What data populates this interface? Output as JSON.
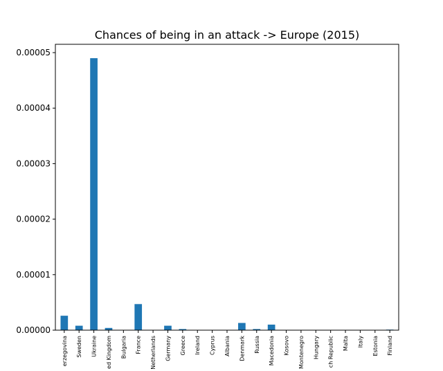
{
  "chart_data": {
    "type": "bar",
    "title": "Chances of being in an attack -> Europe (2015)",
    "xlabel": "",
    "ylabel": "",
    "categories": [
      "erzegovina",
      "Sweden",
      "Ukraine",
      "ed Kingdom",
      "Bulgaria",
      "France",
      "Netherlands",
      "Germany",
      "Greece",
      "Ireland",
      "Cyprus",
      "Albania",
      "Denmark",
      "Russia",
      "Macedonia",
      "Kosovo",
      "Montenegro",
      "Hungary",
      "ch Republic",
      "Malta",
      "Italy",
      "Estonia",
      "Finland"
    ],
    "values": [
      2.6e-06,
      8e-07,
      4.9e-05,
      4e-07,
      0.0,
      4.7e-06,
      0.0,
      8e-07,
      2e-07,
      0.0,
      0.0,
      0.0,
      1.3e-06,
      2e-07,
      1e-06,
      0.0,
      0.0,
      0.0,
      0.0,
      0.0,
      0.0,
      0.0,
      1e-07
    ],
    "ylim": [
      0,
      5.15e-05
    ],
    "yticks": [
      "0.00000",
      "0.00001",
      "0.00002",
      "0.00003",
      "0.00004",
      "0.00005"
    ],
    "ytick_values": [
      0,
      1e-05,
      2e-05,
      3e-05,
      4e-05,
      5e-05
    ],
    "bar_color": "#1f77b4",
    "grid": false
  }
}
